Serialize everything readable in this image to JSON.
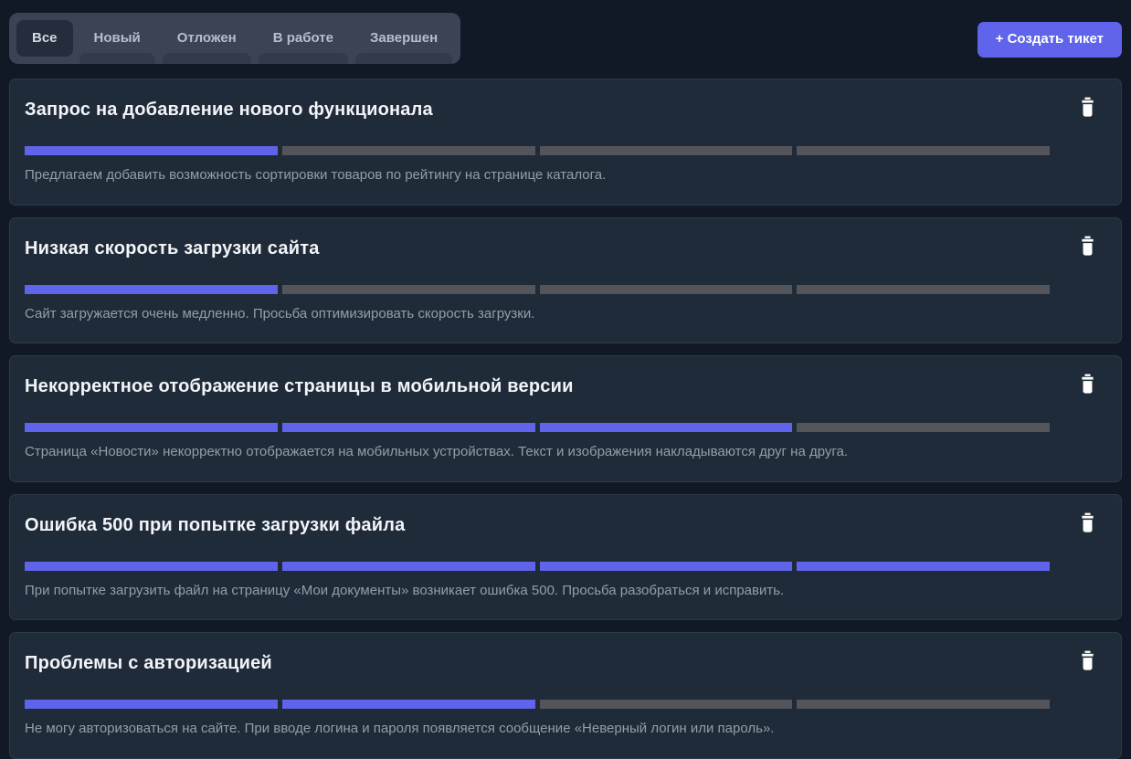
{
  "header": {
    "tabs": [
      {
        "label": "Все",
        "active": true
      },
      {
        "label": "Новый",
        "active": false
      },
      {
        "label": "Отложен",
        "active": false
      },
      {
        "label": "В работе",
        "active": false
      },
      {
        "label": "Завершен",
        "active": false
      }
    ],
    "create_button_label": "+ Создать тикет"
  },
  "tickets": [
    {
      "title": "Запрос на добавление нового функционала",
      "description": "Предлагаем добавить возможность сортировки товаров по рейтингу на странице каталога.",
      "segments_total": 4,
      "segments_filled": 1
    },
    {
      "title": "Низкая скорость загрузки сайта",
      "description": "Сайт загружается очень медленно. Просьба оптимизировать скорость загрузки.",
      "segments_total": 4,
      "segments_filled": 1
    },
    {
      "title": "Некорректное отображение страницы в мобильной версии",
      "description": "Страница «Новости» некорректно отображается на мобильных устройствах. Текст и изображения накладываются друг на друга.",
      "segments_total": 4,
      "segments_filled": 3
    },
    {
      "title": "Ошибка 500 при попытке загрузки файла",
      "description": "При попытке загрузить файл на страницу «Мои документы» возникает ошибка 500. Просьба разобраться и исправить.",
      "segments_total": 4,
      "segments_filled": 4
    },
    {
      "title": "Проблемы с авторизацией",
      "description": "Не могу авторизоваться на сайте. При вводе логина и пароля появляется сообщение «Неверный логин или пароль».",
      "segments_total": 4,
      "segments_filled": 2
    }
  ],
  "icons": {
    "delete": "trash-icon"
  },
  "colors": {
    "page_bg": "#111927",
    "card_bg": "#202b3a",
    "card_border": "#2c3a4e",
    "tabbar_bg": "#3a4454",
    "active_tab_bg": "#242d3b",
    "accent": "#5f64ea",
    "segment_empty": "#54555a",
    "title": "#f2f4f7",
    "description": "#959da7"
  }
}
